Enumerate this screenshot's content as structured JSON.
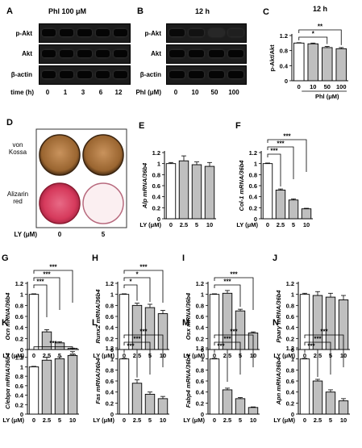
{
  "panels": {
    "A": {
      "letter": "A",
      "title": "Phl 100 μM",
      "rows": [
        "p-Akt",
        "Akt",
        "β-actin"
      ],
      "axis_label": "time (h)",
      "lanes": [
        "0",
        "1",
        "3",
        "6",
        "12"
      ]
    },
    "B": {
      "letter": "B",
      "title": "12 h",
      "rows": [
        "p-Akt",
        "Akt",
        "β-actin"
      ],
      "axis_label": "Phl (μM)",
      "lanes": [
        "0",
        "10",
        "50",
        "100"
      ]
    },
    "D": {
      "letter": "D",
      "rows": [
        "von\nKossa",
        "Alizarin\nred"
      ],
      "axis_label": "LY (μM)",
      "lanes": [
        "0",
        "5"
      ]
    }
  },
  "chart_data": [
    {
      "id": "C",
      "type": "bar",
      "title": "12 h",
      "categories": [
        "0",
        "10",
        "50",
        "100"
      ],
      "values": [
        1.0,
        0.98,
        0.88,
        0.85
      ],
      "errors": [
        0.01,
        0.02,
        0.03,
        0.03
      ],
      "fills": [
        "#ffffff",
        "#bfbfbf",
        "#bfbfbf",
        "#bfbfbf"
      ],
      "ylabel": "p-Akt/Akt",
      "ylim": [
        0,
        1.2
      ],
      "yticks": [
        "0",
        "0.4",
        "0.8",
        "1.2"
      ],
      "xlabel": "Phl (μM)",
      "significance": [
        {
          "from": 0,
          "to": 3,
          "label": "**"
        },
        {
          "from": 0,
          "to": 2,
          "label": "*"
        }
      ]
    },
    {
      "id": "E",
      "type": "bar",
      "categories": [
        "0",
        "2.5",
        "5",
        "10"
      ],
      "values": [
        1.0,
        1.05,
        0.98,
        0.95
      ],
      "errors": [
        0.02,
        0.09,
        0.05,
        0.07
      ],
      "fills": [
        "#ffffff",
        "#bfbfbf",
        "#bfbfbf",
        "#bfbfbf"
      ],
      "ylabel": "Alp mRNA/36b4",
      "ylim": [
        0,
        1.2
      ],
      "yticks": [
        "0",
        "0.2",
        "0.4",
        "0.6",
        "0.8",
        "1",
        "1.2"
      ],
      "xlabel": "LY (μM)",
      "significance": []
    },
    {
      "id": "F",
      "type": "bar",
      "categories": [
        "0",
        "2.5",
        "5",
        "10"
      ],
      "values": [
        1.0,
        0.52,
        0.34,
        0.18
      ],
      "errors": [
        0.01,
        0.02,
        0.02,
        0.01
      ],
      "fills": [
        "#ffffff",
        "#bfbfbf",
        "#bfbfbf",
        "#bfbfbf"
      ],
      "ylabel": "Col-1 mRNA/36b4",
      "ylim": [
        0,
        1.2
      ],
      "yticks": [
        "0",
        "0.2",
        "0.4",
        "0.6",
        "0.8",
        "1",
        "1.2"
      ],
      "xlabel": "LY (μM)",
      "significance": [
        {
          "from": 0,
          "to": 3,
          "label": "***"
        },
        {
          "from": 0,
          "to": 2,
          "label": "***"
        },
        {
          "from": 0,
          "to": 1,
          "label": "***"
        }
      ]
    },
    {
      "id": "G",
      "type": "bar",
      "categories": [
        "0",
        "2.5",
        "5",
        "10"
      ],
      "values": [
        1.0,
        0.32,
        0.12,
        0.02
      ],
      "errors": [
        0.01,
        0.04,
        0.02,
        0.005
      ],
      "fills": [
        "#ffffff",
        "#bfbfbf",
        "#bfbfbf",
        "#bfbfbf"
      ],
      "ylabel": "Ocn mRNA/36b4",
      "ylim": [
        0,
        1.2
      ],
      "yticks": [
        "0",
        "0.2",
        "0.4",
        "0.6",
        "0.8",
        "1",
        "1.2"
      ],
      "xlabel": "LY (μM)",
      "significance": [
        {
          "from": 0,
          "to": 3,
          "label": "***"
        },
        {
          "from": 0,
          "to": 2,
          "label": "***"
        },
        {
          "from": 0,
          "to": 1,
          "label": "***"
        }
      ]
    },
    {
      "id": "H",
      "type": "bar",
      "categories": [
        "0",
        "2.5",
        "5",
        "10"
      ],
      "values": [
        1.0,
        0.8,
        0.76,
        0.65
      ],
      "errors": [
        0.01,
        0.04,
        0.06,
        0.06
      ],
      "fills": [
        "#ffffff",
        "#bfbfbf",
        "#bfbfbf",
        "#bfbfbf"
      ],
      "ylabel": "Runx2 mRNA/36b4",
      "ylim": [
        0,
        1.2
      ],
      "yticks": [
        "0",
        "0.2",
        "0.4",
        "0.6",
        "0.8",
        "1",
        "1.2"
      ],
      "xlabel": "LY (μM)",
      "significance": [
        {
          "from": 0,
          "to": 3,
          "label": "***"
        },
        {
          "from": 0,
          "to": 2,
          "label": "*"
        },
        {
          "from": 0,
          "to": 1,
          "label": "*"
        }
      ]
    },
    {
      "id": "I",
      "type": "bar",
      "categories": [
        "0",
        "2.5",
        "5",
        "10"
      ],
      "values": [
        1.0,
        1.02,
        0.7,
        0.3
      ],
      "errors": [
        0.01,
        0.05,
        0.03,
        0.02
      ],
      "fills": [
        "#ffffff",
        "#bfbfbf",
        "#bfbfbf",
        "#bfbfbf"
      ],
      "ylabel": "Osx mRNA/36b4",
      "ylim": [
        0,
        1.2
      ],
      "yticks": [
        "0",
        "0.2",
        "0.4",
        "0.6",
        "0.8",
        "1",
        "1.2"
      ],
      "xlabel": "LY (μM)",
      "significance": [
        {
          "from": 0,
          "to": 3,
          "label": "***"
        },
        {
          "from": 0,
          "to": 2,
          "label": "***"
        }
      ]
    },
    {
      "id": "J",
      "type": "bar",
      "categories": [
        "0",
        "2.5",
        "5",
        "10"
      ],
      "values": [
        1.0,
        0.98,
        0.95,
        0.9
      ],
      "errors": [
        0.02,
        0.07,
        0.07,
        0.08
      ],
      "fills": [
        "#ffffff",
        "#bfbfbf",
        "#bfbfbf",
        "#bfbfbf"
      ],
      "ylabel": "Pparγ mRNA/36b4",
      "ylim": [
        0,
        1.2
      ],
      "yticks": [
        "0",
        "0.2",
        "0.4",
        "0.6",
        "0.8",
        "1",
        "1.2"
      ],
      "xlabel": "LY (μM)",
      "significance": []
    },
    {
      "id": "K",
      "type": "bar",
      "categories": [
        "0",
        "2.5",
        "5",
        "10"
      ],
      "values": [
        1.0,
        1.14,
        1.17,
        1.24
      ],
      "errors": [
        0.01,
        0.06,
        0.04,
        0.08
      ],
      "fills": [
        "#ffffff",
        "#bfbfbf",
        "#bfbfbf",
        "#bfbfbf"
      ],
      "ylabel": "C/ebpα mRNA/36b4",
      "ylim": [
        0,
        1.4
      ],
      "yticks": [
        "0",
        "0.2",
        "0.4",
        "0.6",
        "0.8",
        "1",
        "1.2"
      ],
      "xlabel": "LY (μM)",
      "significance": [
        {
          "from": 0,
          "to": 3,
          "label": "***"
        }
      ]
    },
    {
      "id": "L",
      "type": "bar",
      "categories": [
        "0",
        "2.5",
        "5",
        "10"
      ],
      "values": [
        1.0,
        0.56,
        0.36,
        0.28
      ],
      "errors": [
        0.01,
        0.06,
        0.04,
        0.04
      ],
      "fills": [
        "#ffffff",
        "#bfbfbf",
        "#bfbfbf",
        "#bfbfbf"
      ],
      "ylabel": "Fas mRNA/36b4",
      "ylim": [
        0,
        1.2
      ],
      "yticks": [
        "0",
        "0.2",
        "0.4",
        "0.6",
        "0.8",
        "1",
        "1.2"
      ],
      "xlabel": "LY (μM)",
      "significance": [
        {
          "from": 0,
          "to": 3,
          "label": "***"
        },
        {
          "from": 0,
          "to": 2,
          "label": "***"
        },
        {
          "from": 0,
          "to": 1,
          "label": "***"
        }
      ]
    },
    {
      "id": "M",
      "type": "bar",
      "categories": [
        "0",
        "2.5",
        "5",
        "10"
      ],
      "values": [
        1.0,
        0.44,
        0.28,
        0.12
      ],
      "errors": [
        0.01,
        0.03,
        0.02,
        0.01
      ],
      "fills": [
        "#ffffff",
        "#bfbfbf",
        "#bfbfbf",
        "#bfbfbf"
      ],
      "ylabel": "Fabp4 mRNA/36b4",
      "ylim": [
        0,
        1.2
      ],
      "yticks": [
        "0",
        "0.2",
        "0.4",
        "0.6",
        "0.8",
        "1",
        "1.2"
      ],
      "xlabel": "LY (μM)",
      "significance": [
        {
          "from": 0,
          "to": 3,
          "label": "***"
        },
        {
          "from": 0,
          "to": 2,
          "label": "***"
        },
        {
          "from": 0,
          "to": 1,
          "label": "***"
        }
      ]
    },
    {
      "id": "N",
      "type": "bar",
      "categories": [
        "0",
        "2.5",
        "5",
        "10"
      ],
      "values": [
        1.0,
        0.6,
        0.4,
        0.24
      ],
      "errors": [
        0.01,
        0.03,
        0.04,
        0.04
      ],
      "fills": [
        "#ffffff",
        "#bfbfbf",
        "#bfbfbf",
        "#bfbfbf"
      ],
      "ylabel": "Apn mRNA/36b4",
      "ylim": [
        0,
        1.2
      ],
      "yticks": [
        "0",
        "0.2",
        "0.4",
        "0.6",
        "0.8",
        "1",
        "1.2"
      ],
      "xlabel": "LY (μM)",
      "significance": [
        {
          "from": 0,
          "to": 3,
          "label": "***"
        },
        {
          "from": 0,
          "to": 2,
          "label": "***"
        },
        {
          "from": 0,
          "to": 1,
          "label": "***"
        }
      ]
    }
  ]
}
